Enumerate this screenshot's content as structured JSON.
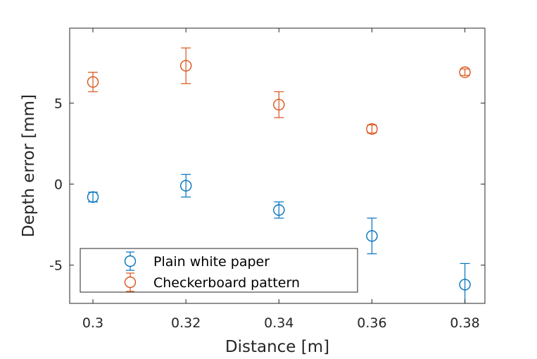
{
  "chart_data": {
    "type": "scatter",
    "xlabel": "Distance [m]",
    "ylabel": "Depth error [mm]",
    "xlim": [
      0.295,
      0.3843
    ],
    "ylim": [
      -7.36,
      9.62
    ],
    "xticks": [
      0.3,
      0.32,
      0.34,
      0.36,
      0.38
    ],
    "xtick_labels": [
      "0.3",
      "0.32",
      "0.34",
      "0.36",
      "0.38"
    ],
    "yticks": [
      -5,
      0,
      5
    ],
    "ytick_labels": [
      "-5",
      "0",
      "5"
    ],
    "grid": false,
    "legend_position": "bottom-left",
    "marker": "circle",
    "error_bars": true,
    "series": [
      {
        "name": "Plain white paper",
        "color": "#0072BD",
        "points": [
          {
            "x": 0.3,
            "y": -0.8,
            "err_low": 0.3,
            "err_high": 0.3
          },
          {
            "x": 0.32,
            "y": -0.1,
            "err_low": 0.7,
            "err_high": 0.7
          },
          {
            "x": 0.34,
            "y": -1.6,
            "err_low": 0.5,
            "err_high": 0.5
          },
          {
            "x": 0.36,
            "y": -3.2,
            "err_low": 1.1,
            "err_high": 1.1
          },
          {
            "x": 0.38,
            "y": -6.2,
            "err_low": 1.3,
            "err_high": 1.3
          }
        ]
      },
      {
        "name": "Checkerboard pattern",
        "color": "#D95319",
        "points": [
          {
            "x": 0.3,
            "y": 6.3,
            "err_low": 0.6,
            "err_high": 0.6
          },
          {
            "x": 0.32,
            "y": 7.3,
            "err_low": 1.1,
            "err_high": 1.1
          },
          {
            "x": 0.34,
            "y": 4.9,
            "err_low": 0.8,
            "err_high": 0.8
          },
          {
            "x": 0.36,
            "y": 3.4,
            "err_low": 0.25,
            "err_high": 0.25
          },
          {
            "x": 0.38,
            "y": 6.9,
            "err_low": 0.2,
            "err_high": 0.2
          }
        ]
      }
    ]
  }
}
